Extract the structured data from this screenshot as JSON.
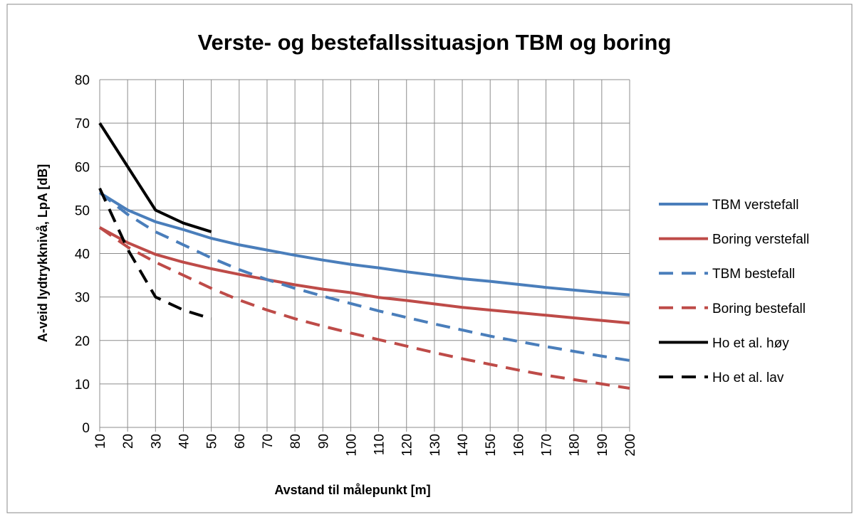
{
  "chart_data": {
    "type": "line",
    "title": "Verste- og bestefallssituasjon  TBM og boring",
    "x_label": "Avstand til målepunkt [m]",
    "y_label": "A-veid lydtrykknivå, LpA [dB]",
    "x": [
      10,
      20,
      30,
      40,
      50,
      60,
      70,
      80,
      90,
      100,
      110,
      120,
      130,
      140,
      150,
      160,
      170,
      180,
      190,
      200
    ],
    "xlim": [
      10,
      200
    ],
    "xticks": [
      10,
      20,
      30,
      40,
      50,
      60,
      70,
      80,
      90,
      100,
      110,
      120,
      130,
      140,
      150,
      160,
      170,
      180,
      190,
      200
    ],
    "ylim": [
      0,
      80
    ],
    "yticks": [
      0,
      10,
      20,
      30,
      40,
      50,
      60,
      70,
      80
    ],
    "grid": true,
    "legend": "right",
    "series": [
      {
        "name": "TBM verstefall",
        "color": "#4a7ebb",
        "dash": false,
        "values": [
          54,
          50,
          47.3,
          45.5,
          43.5,
          42,
          40.8,
          39.6,
          38.5,
          37.5,
          36.7,
          35.8,
          35,
          34.2,
          33.6,
          32.9,
          32.2,
          31.6,
          31,
          30.5
        ]
      },
      {
        "name": "Boring verstefall",
        "color": "#be4b48",
        "dash": false,
        "values": [
          46,
          42.5,
          39.8,
          38,
          36.5,
          35.2,
          34,
          32.8,
          31.8,
          31,
          29.9,
          29.2,
          28.4,
          27.6,
          27,
          26.4,
          25.8,
          25.2,
          24.6,
          24
        ]
      },
      {
        "name": "TBM bestefall",
        "color": "#4a7ebb",
        "dash": true,
        "values": [
          54,
          49,
          45,
          42,
          39,
          36.3,
          34,
          32,
          30.2,
          28.5,
          26.8,
          25.3,
          23.8,
          22.4,
          21,
          19.8,
          18.6,
          17.5,
          16.4,
          15.4
        ]
      },
      {
        "name": "Boring bestefall",
        "color": "#be4b48",
        "dash": true,
        "values": [
          46,
          41.5,
          38,
          35,
          32,
          29.3,
          27,
          25,
          23.3,
          21.7,
          20.2,
          18.7,
          17.2,
          15.8,
          14.5,
          13.2,
          12,
          11,
          10,
          9
        ]
      },
      {
        "name": "Ho et al. høy",
        "color": "#000000",
        "dash": false,
        "values": [
          70,
          60,
          50,
          47,
          45,
          null,
          null,
          null,
          null,
          null,
          null,
          null,
          null,
          null,
          null,
          null,
          null,
          null,
          null,
          null
        ]
      },
      {
        "name": "Ho et al. lav",
        "color": "#000000",
        "dash": true,
        "values": [
          55,
          41,
          30,
          27,
          25,
          null,
          null,
          null,
          null,
          null,
          null,
          null,
          null,
          null,
          null,
          null,
          null,
          null,
          null,
          null
        ]
      }
    ]
  }
}
